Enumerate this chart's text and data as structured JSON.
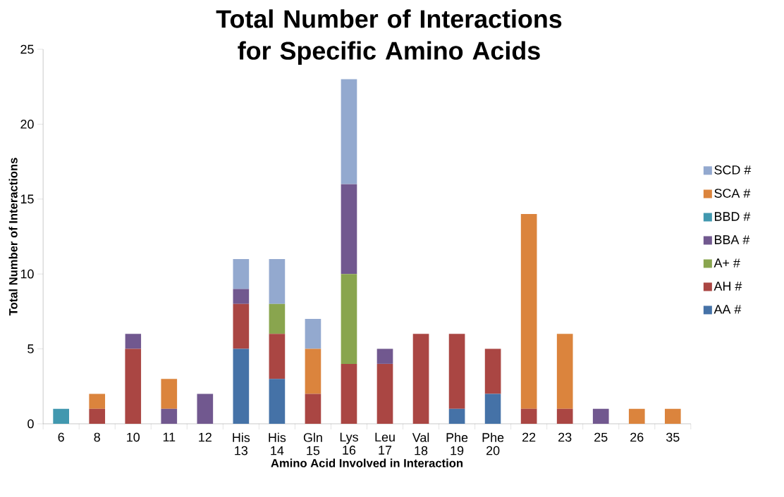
{
  "chart_data": {
    "type": "bar",
    "stacked": true,
    "title": "Total Number of Interactions for Specific Amino Acids",
    "xlabel": "Amino Acid Involved in Interaction",
    "ylabel": "Total Number of Interactions",
    "categories": [
      "6",
      "8",
      "10",
      "11",
      "12",
      "His 13",
      "His 14",
      "Gln 15",
      "Lys 16",
      "Leu 17",
      "Val 18",
      "Phe 19",
      "Phe 20",
      "22",
      "23",
      "25",
      "26",
      "35"
    ],
    "ylim": [
      0,
      25
    ],
    "yticks": [
      0,
      5,
      10,
      15,
      20,
      25
    ],
    "legend": "right",
    "series": [
      {
        "name": "AA #",
        "color": "#4572a7",
        "values": [
          null,
          null,
          null,
          null,
          null,
          5,
          3,
          null,
          null,
          null,
          null,
          1,
          2,
          null,
          null,
          null,
          null,
          null
        ]
      },
      {
        "name": "AH #",
        "color": "#aa4643",
        "values": [
          null,
          1,
          5,
          null,
          null,
          3,
          3,
          2,
          4,
          4,
          6,
          5,
          3,
          1,
          1,
          null,
          null,
          null
        ]
      },
      {
        "name": "A+ #",
        "color": "#89a54e",
        "values": [
          null,
          null,
          null,
          null,
          null,
          null,
          2,
          null,
          6,
          null,
          null,
          null,
          null,
          null,
          null,
          null,
          null,
          null
        ]
      },
      {
        "name": "BBA #",
        "color": "#71588f",
        "values": [
          null,
          null,
          1,
          1,
          2,
          1,
          null,
          null,
          6,
          1,
          null,
          null,
          null,
          null,
          null,
          1,
          null,
          null
        ]
      },
      {
        "name": "BBD #",
        "color": "#4198af",
        "values": [
          1,
          null,
          null,
          null,
          null,
          null,
          null,
          null,
          null,
          null,
          null,
          null,
          null,
          null,
          null,
          null,
          null,
          null
        ]
      },
      {
        "name": "SCA #",
        "color": "#db843d",
        "values": [
          null,
          1,
          null,
          2,
          null,
          null,
          null,
          3,
          null,
          null,
          null,
          null,
          null,
          13,
          5,
          null,
          1,
          1
        ]
      },
      {
        "name": "SCD #",
        "color": "#93a9cf",
        "values": [
          null,
          null,
          null,
          null,
          null,
          2,
          3,
          2,
          7,
          null,
          null,
          null,
          null,
          null,
          null,
          null,
          null,
          null
        ]
      }
    ]
  }
}
